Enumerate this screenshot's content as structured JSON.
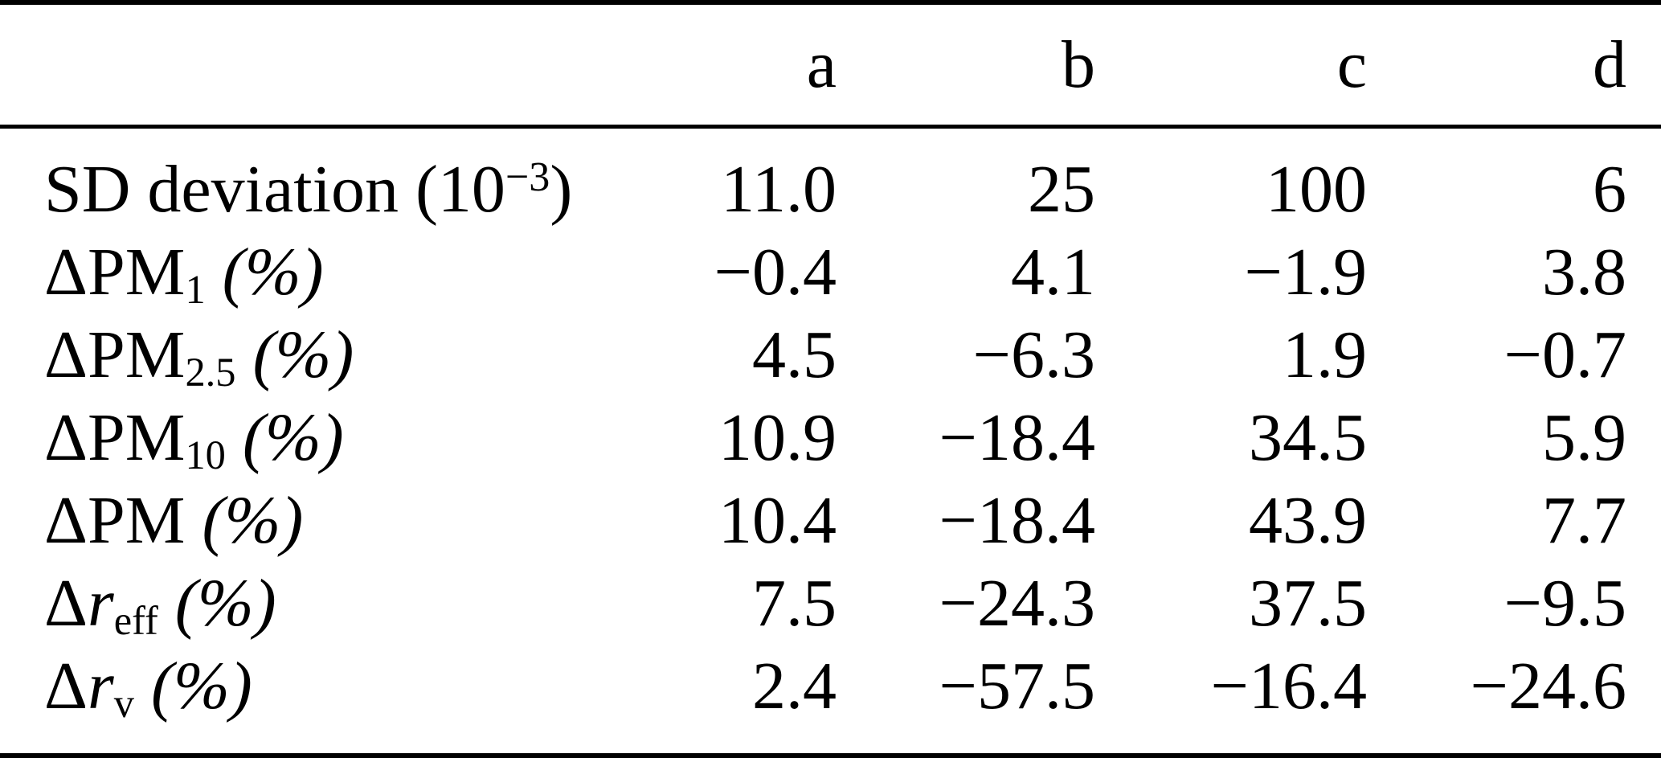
{
  "table": {
    "columns": [
      "",
      "a",
      "b",
      "c",
      "d"
    ],
    "rows": [
      {
        "label": {
          "pre": "SD deviation (10",
          "sup": "−3",
          "post": ")"
        },
        "values": [
          "11.0",
          "25",
          "100",
          "6"
        ]
      },
      {
        "label": {
          "pre": "ΔPM",
          "sub": "1",
          "unit": " (%)"
        },
        "values": [
          "−0.4",
          "4.1",
          "−1.9",
          "3.8"
        ]
      },
      {
        "label": {
          "pre": "ΔPM",
          "sub": "2.5",
          "unit": " (%)"
        },
        "values": [
          "4.5",
          "−6.3",
          "1.9",
          "−0.7"
        ]
      },
      {
        "label": {
          "pre": "ΔPM",
          "sub": "10",
          "unit": " (%)"
        },
        "values": [
          "10.9",
          "−18.4",
          "34.5",
          "5.9"
        ]
      },
      {
        "label": {
          "pre": "ΔPM",
          "unit": " (%)"
        },
        "values": [
          "10.4",
          "−18.4",
          "43.9",
          "7.7"
        ]
      },
      {
        "label": {
          "pre": "Δ",
          "it": "r",
          "sub": "eff",
          "unit": " (%)"
        },
        "values": [
          "7.5",
          "−24.3",
          "37.5",
          "−9.5"
        ]
      },
      {
        "label": {
          "pre": "Δ",
          "it": "r",
          "sub": "v",
          "unit": " (%)"
        },
        "values": [
          "2.4",
          "−57.5",
          "−16.4",
          "−24.6"
        ]
      }
    ]
  }
}
